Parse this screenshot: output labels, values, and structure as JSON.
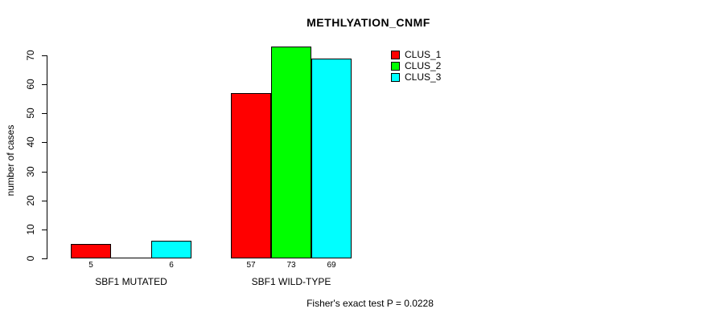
{
  "chart_data": {
    "type": "bar",
    "title": "METHLYATION_CNMF",
    "ylabel": "number of cases",
    "xlabel": "",
    "ylim": [
      0,
      70
    ],
    "yticks": [
      0,
      10,
      20,
      30,
      40,
      50,
      60,
      70
    ],
    "categories": [
      "SBF1 MUTATED",
      "SBF1 WILD-TYPE"
    ],
    "series": [
      {
        "name": "CLUS_1",
        "color": "#ff0000",
        "values": [
          5,
          57
        ]
      },
      {
        "name": "CLUS_2",
        "color": "#00ff00",
        "values": [
          0,
          73
        ]
      },
      {
        "name": "CLUS_3",
        "color": "#00ffff",
        "values": [
          6,
          69
        ]
      }
    ],
    "bar_value_labels": [
      [
        "5",
        "",
        "6"
      ],
      [
        "57",
        "73",
        "69"
      ]
    ],
    "bar_outline_color": "#000000",
    "annotation": "Fisher's exact test P = 0.0228",
    "grid": false,
    "legend": {
      "position": "top-right-inside",
      "entries": [
        "CLUS_1",
        "CLUS_2",
        "CLUS_3"
      ]
    }
  }
}
